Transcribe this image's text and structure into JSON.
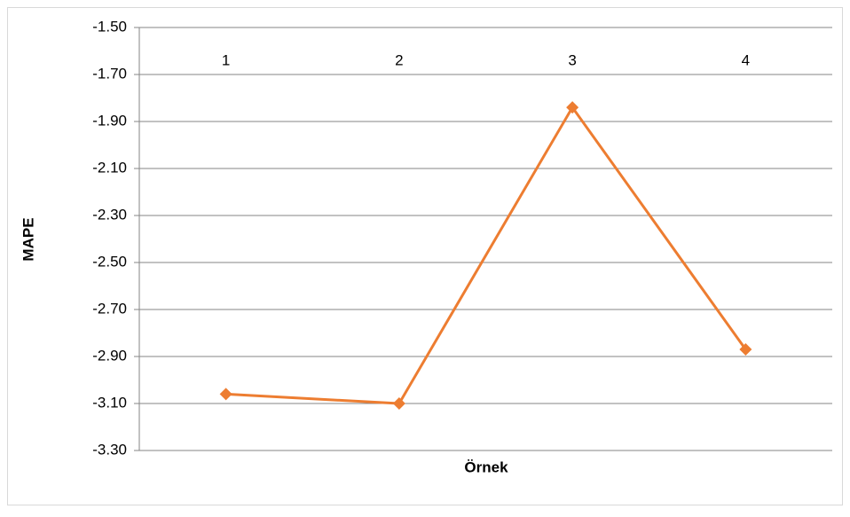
{
  "chart_data": {
    "type": "line",
    "x_label": "Örnek",
    "y_label": "MAPE",
    "categories": [
      "1",
      "2",
      "3",
      "4"
    ],
    "series": [
      {
        "name": "MAPE",
        "color": "#ed7d31",
        "values": [
          -3.06,
          -3.1,
          -1.84,
          -2.87
        ]
      }
    ],
    "ylim": [
      -3.3,
      -1.5
    ],
    "yticks": [
      {
        "value": -3.3,
        "label": "-3.30"
      },
      {
        "value": -3.1,
        "label": "-3.10"
      },
      {
        "value": -2.9,
        "label": "-2.90"
      },
      {
        "value": -2.7,
        "label": "-2.70"
      },
      {
        "value": -2.5,
        "label": "-2.50"
      },
      {
        "value": -2.3,
        "label": "-2.30"
      },
      {
        "value": -2.1,
        "label": "-2.10"
      },
      {
        "value": -1.9,
        "label": "-1.90"
      },
      {
        "value": -1.7,
        "label": "-1.70"
      },
      {
        "value": -1.5,
        "label": "-1.50"
      }
    ],
    "grid": true
  }
}
